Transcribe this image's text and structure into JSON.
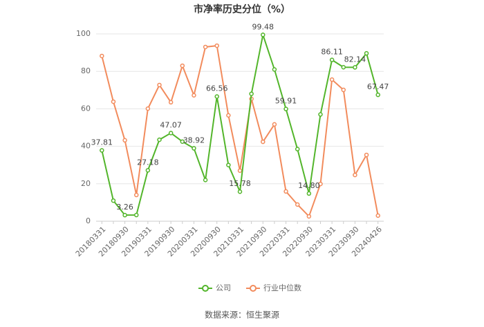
{
  "chart_data": {
    "type": "line",
    "title": "市净率历史分位（%）",
    "categories": [
      "20180331",
      null,
      "20180930",
      null,
      "20190331",
      null,
      "20190930",
      null,
      "20200331",
      null,
      "20200930",
      null,
      "20210331",
      null,
      "20210930",
      null,
      "20220331",
      null,
      "20220930",
      null,
      "20230331",
      null,
      "20230930",
      null,
      "20240426"
    ],
    "series": [
      {
        "name": "公司",
        "color": "#52b52a",
        "values": [
          37.81,
          11,
          3.26,
          3.3,
          27.18,
          43.5,
          47.07,
          42.5,
          38.92,
          22,
          66.56,
          30,
          15.78,
          68,
          99.48,
          81,
          59.91,
          38.5,
          14.8,
          57,
          86.11,
          82.2,
          82.14,
          89.6,
          67.47
        ],
        "value_labels": [
          "37.81",
          null,
          "3.26",
          null,
          "27.18",
          null,
          "47.07",
          null,
          "38.92",
          null,
          "66.56",
          null,
          "15.78",
          null,
          "99.48",
          null,
          "59.91",
          null,
          "14.80",
          null,
          "86.11",
          null,
          "82.14",
          null,
          "67.47"
        ]
      },
      {
        "name": "行业中位数",
        "color": "#f28b5c",
        "values": [
          88.2,
          63.8,
          43.2,
          14,
          60.1,
          72.7,
          63.5,
          83,
          67.2,
          93,
          93.7,
          56.5,
          27,
          65.3,
          42.4,
          51.7,
          15.9,
          8.9,
          2.6,
          19.9,
          75.6,
          70.1,
          24.7,
          35.4,
          3
        ]
      }
    ],
    "ylim": [
      0,
      100
    ],
    "yticks": [
      0,
      20,
      40,
      60,
      80,
      100
    ],
    "grid": true,
    "source": "数据来源：恒生聚源"
  }
}
